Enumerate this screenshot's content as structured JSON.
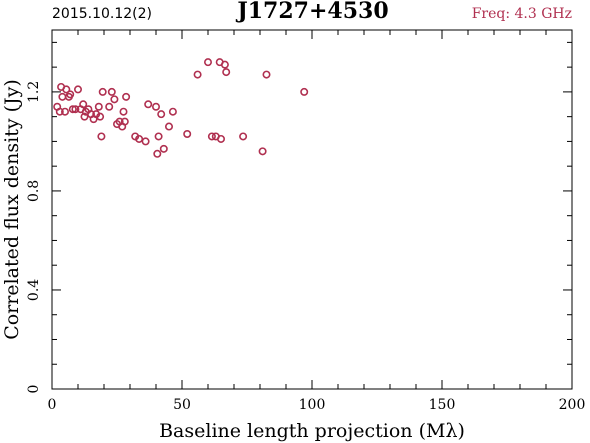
{
  "header": {
    "date": "2015.10.12(2)",
    "source": "J1727+4530",
    "freq": "Freq: 4.3 GHz"
  },
  "colors": {
    "marker": "#b03050",
    "freq_text": "#b03050",
    "axis": "#000000"
  },
  "chart_data": {
    "type": "scatter",
    "title": "J1727+4530",
    "xlabel": "Baseline length projection (Mλ)",
    "ylabel": "Correlated flux density (Jy)",
    "xlim": [
      0,
      200
    ],
    "ylim": [
      0,
      1.45
    ],
    "x_ticks": [
      0,
      50,
      100,
      150,
      200
    ],
    "y_ticks": [
      0,
      0.4,
      0.8,
      1.2
    ],
    "x_tick_labels": [
      "0",
      "50",
      "100",
      "150",
      "200"
    ],
    "y_tick_labels": [
      "0",
      "0.4",
      "0.8",
      "1.2"
    ],
    "grid": false,
    "series": [
      {
        "marker": "open-circle",
        "points": [
          [
            2,
            1.14
          ],
          [
            3,
            1.12
          ],
          [
            3.5,
            1.22
          ],
          [
            4,
            1.18
          ],
          [
            5,
            1.12
          ],
          [
            5.5,
            1.21
          ],
          [
            6.5,
            1.18
          ],
          [
            7,
            1.19
          ],
          [
            8,
            1.13
          ],
          [
            9,
            1.13
          ],
          [
            10,
            1.21
          ],
          [
            11,
            1.13
          ],
          [
            12,
            1.15
          ],
          [
            12.5,
            1.1
          ],
          [
            13,
            1.12
          ],
          [
            14,
            1.13
          ],
          [
            15,
            1.11
          ],
          [
            16,
            1.09
          ],
          [
            17,
            1.11
          ],
          [
            18,
            1.14
          ],
          [
            18.5,
            1.1
          ],
          [
            19,
            1.02
          ],
          [
            19.5,
            1.2
          ],
          [
            22,
            1.14
          ],
          [
            23,
            1.2
          ],
          [
            24,
            1.17
          ],
          [
            25,
            1.07
          ],
          [
            26,
            1.08
          ],
          [
            27,
            1.06
          ],
          [
            27.5,
            1.12
          ],
          [
            28,
            1.08
          ],
          [
            28.5,
            1.18
          ],
          [
            32,
            1.02
          ],
          [
            33.5,
            1.01
          ],
          [
            36,
            1.0
          ],
          [
            37,
            1.15
          ],
          [
            40,
            1.14
          ],
          [
            40.5,
            0.95
          ],
          [
            41,
            1.02
          ],
          [
            42,
            1.11
          ],
          [
            43,
            0.97
          ],
          [
            45,
            1.06
          ],
          [
            46.5,
            1.12
          ],
          [
            52,
            1.03
          ],
          [
            56,
            1.27
          ],
          [
            60,
            1.32
          ],
          [
            61.5,
            1.02
          ],
          [
            63,
            1.02
          ],
          [
            64.5,
            1.32
          ],
          [
            65,
            1.01
          ],
          [
            66.5,
            1.31
          ],
          [
            67,
            1.28
          ],
          [
            73.5,
            1.02
          ],
          [
            81,
            0.96
          ],
          [
            82.5,
            1.27
          ],
          [
            97,
            1.2
          ]
        ]
      }
    ]
  }
}
